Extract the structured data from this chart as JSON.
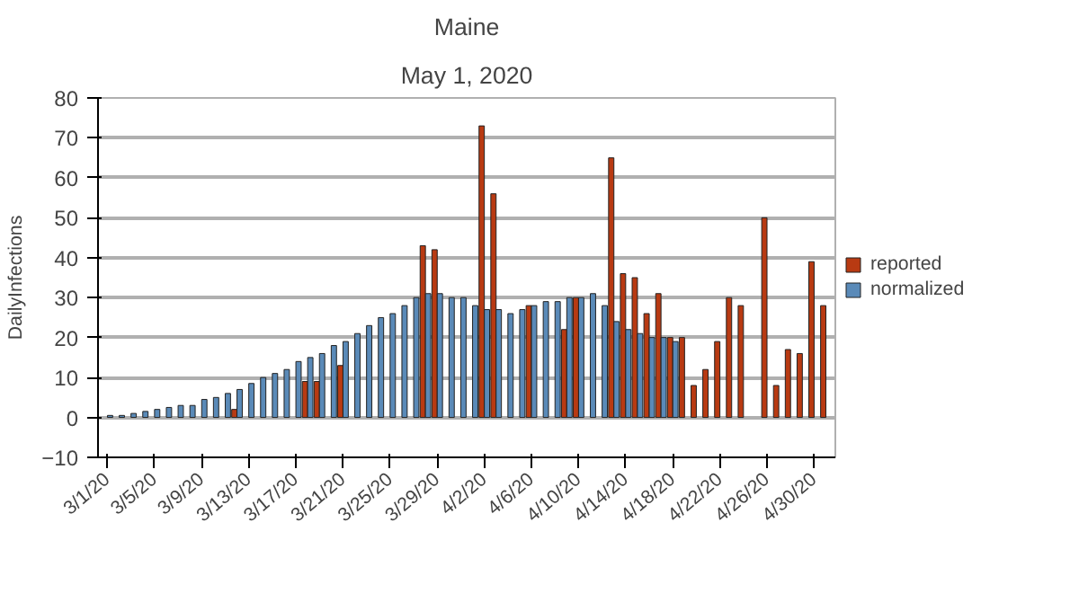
{
  "chart_data": {
    "type": "bar",
    "title": "Maine",
    "subtitle": "May 1, 2020",
    "ylabel": "DailyInfections",
    "categories": [
      "3/1/20",
      null,
      null,
      null,
      "3/5/20",
      null,
      null,
      null,
      "3/9/20",
      null,
      null,
      null,
      "3/13/20",
      null,
      null,
      null,
      "3/17/20",
      null,
      null,
      null,
      "3/21/20",
      null,
      null,
      null,
      "3/25/20",
      null,
      null,
      null,
      "3/29/20",
      null,
      null,
      null,
      "4/2/20",
      null,
      null,
      null,
      "4/6/20",
      null,
      null,
      null,
      "4/10/20",
      null,
      null,
      null,
      "4/14/20",
      null,
      null,
      null,
      "4/18/20",
      null,
      null,
      null,
      "4/22/20",
      null,
      null,
      null,
      "4/26/20",
      null,
      null,
      null,
      "4/30/20",
      null
    ],
    "series": [
      {
        "name": "reported",
        "color": "#b83a12",
        "values": [
          null,
          null,
          null,
          null,
          null,
          null,
          null,
          null,
          null,
          null,
          null,
          2,
          null,
          null,
          null,
          null,
          null,
          9,
          9,
          null,
          13,
          null,
          null,
          null,
          null,
          null,
          null,
          43,
          42,
          null,
          null,
          null,
          73,
          56,
          null,
          null,
          28,
          null,
          null,
          22,
          30,
          null,
          null,
          65,
          36,
          35,
          26,
          31,
          20,
          20,
          8,
          12,
          19,
          30,
          28,
          null,
          50,
          8,
          17,
          16,
          39,
          28
        ]
      },
      {
        "name": "normalized",
        "color": "#5a8ab8",
        "values": [
          0.5,
          0.5,
          1,
          1.5,
          2,
          2.5,
          3,
          3,
          4.5,
          5,
          6,
          7,
          8.5,
          10,
          11,
          12,
          14,
          15,
          16,
          18,
          19,
          21,
          23,
          25,
          26,
          28,
          30,
          31,
          31,
          30,
          30,
          28,
          27,
          27,
          26,
          27,
          28,
          29,
          29,
          30,
          30,
          31,
          28,
          24,
          22,
          21,
          20,
          20,
          19,
          null,
          null,
          null,
          null,
          null,
          null,
          null,
          null,
          null,
          null,
          null,
          null,
          null
        ]
      }
    ],
    "ylim": [
      -10,
      80
    ],
    "yticks": [
      -10,
      0,
      10,
      20,
      30,
      40,
      50,
      60,
      70,
      80
    ],
    "grid": "y",
    "legend": "right"
  }
}
